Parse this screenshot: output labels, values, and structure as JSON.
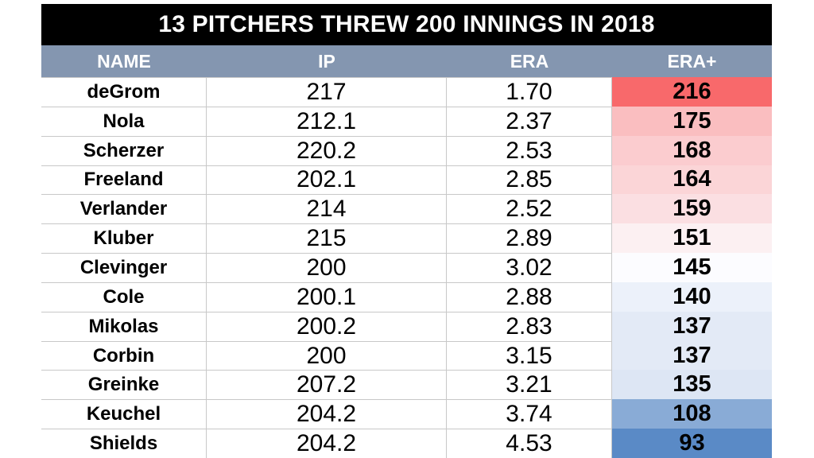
{
  "title": "13 PITCHERS THREW 200 INNINGS IN 2018",
  "header": {
    "name": "NAME",
    "ip": "IP",
    "era": "ERA",
    "era_plus": "ERA+"
  },
  "rows": [
    {
      "name": "deGrom",
      "ip": "217",
      "era": "1.70",
      "era_plus": "216",
      "color": "#F8696B"
    },
    {
      "name": "Nola",
      "ip": "212.1",
      "era": "2.37",
      "era_plus": "175",
      "color": "#FABEC0"
    },
    {
      "name": "Scherzer",
      "ip": "220.2",
      "era": "2.53",
      "era_plus": "168",
      "color": "#FBCCCF"
    },
    {
      "name": "Freeland",
      "ip": "202.1",
      "era": "2.85",
      "era_plus": "164",
      "color": "#FBD5D7"
    },
    {
      "name": "Verlander",
      "ip": "214",
      "era": "2.52",
      "era_plus": "159",
      "color": "#FBDFE2"
    },
    {
      "name": "Kluber",
      "ip": "215",
      "era": "2.89",
      "era_plus": "151",
      "color": "#FCF0F2"
    },
    {
      "name": "Clevinger",
      "ip": "200",
      "era": "3.02",
      "era_plus": "145",
      "color": "#FCFCFF"
    },
    {
      "name": "Cole",
      "ip": "200.1",
      "era": "2.88",
      "era_plus": "140",
      "color": "#ECF1FA"
    },
    {
      "name": "Mikolas",
      "ip": "200.2",
      "era": "2.83",
      "era_plus": "137",
      "color": "#E3EAF6"
    },
    {
      "name": "Corbin",
      "ip": "200",
      "era": "3.15",
      "era_plus": "137",
      "color": "#E3EAF6"
    },
    {
      "name": "Greinke",
      "ip": "207.2",
      "era": "3.21",
      "era_plus": "135",
      "color": "#DDE6F4"
    },
    {
      "name": "Keuchel",
      "ip": "204.2",
      "era": "3.74",
      "era_plus": "108",
      "color": "#89ABD6"
    },
    {
      "name": "Shields",
      "ip": "204.2",
      "era": "4.53",
      "era_plus": "93",
      "color": "#5A8AC6"
    }
  ],
  "colors": {
    "page_bg": "#FFFFFF",
    "title_bg": "#000000",
    "title_text": "#FFFFFF",
    "header_bg": "#8496B0",
    "header_text": "#FFFFFF",
    "grid_line": "#C8C8C8",
    "body_text": "#000000"
  },
  "chart_data": {
    "type": "table",
    "title": "13 PITCHERS THREW 200 INNINGS IN 2018",
    "columns": [
      "NAME",
      "IP",
      "ERA",
      "ERA+"
    ],
    "rows": [
      [
        "deGrom",
        217,
        1.7,
        216
      ],
      [
        "Nola",
        212.1,
        2.37,
        175
      ],
      [
        "Scherzer",
        220.2,
        2.53,
        168
      ],
      [
        "Freeland",
        202.1,
        2.85,
        164
      ],
      [
        "Verlander",
        214,
        2.52,
        159
      ],
      [
        "Kluber",
        215,
        2.89,
        151
      ],
      [
        "Clevinger",
        200,
        3.02,
        145
      ],
      [
        "Cole",
        200.1,
        2.88,
        140
      ],
      [
        "Mikolas",
        200.2,
        2.83,
        137
      ],
      [
        "Corbin",
        200,
        3.15,
        137
      ],
      [
        "Greinke",
        207.2,
        3.21,
        135
      ],
      [
        "Keuchel",
        204.2,
        3.74,
        108
      ],
      [
        "Shields",
        204.2,
        4.53,
        93
      ]
    ],
    "conditional_format": {
      "column": "ERA+",
      "style": "3-color-scale",
      "max": {
        "value": 216,
        "color": "#F8696B"
      },
      "mid": {
        "value": 145,
        "color": "#FCFCFF"
      },
      "min": {
        "value": 93,
        "color": "#5A8AC6"
      }
    }
  }
}
